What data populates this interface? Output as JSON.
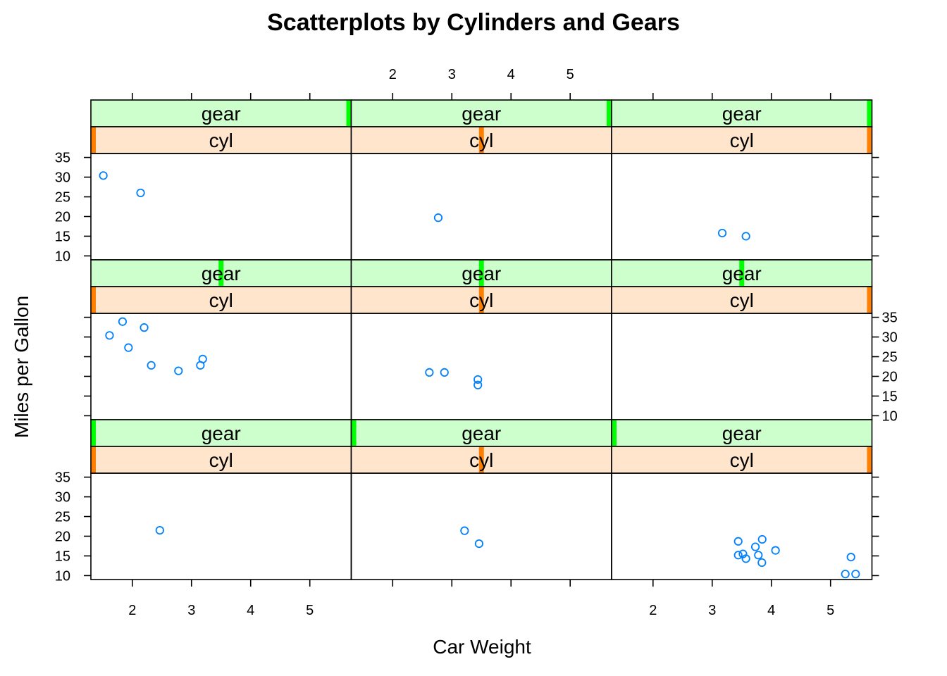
{
  "title": "Scatterplots by Cylinders and Gears",
  "xlabel": "Car Weight",
  "ylabel": "Miles per Gallon",
  "colors": {
    "point": "#0080FF",
    "gear_strip_bg": "#CCFFCC",
    "gear_strip_bar": "#00FF00",
    "cyl_strip_bg": "#FFE5CC",
    "cyl_strip_bar": "#FF7F00",
    "frame": "#000000"
  },
  "chart_data": {
    "type": "scatter",
    "layout": "3x3 lattice (trellis) panels",
    "x_ticks": [
      2,
      3,
      4,
      5
    ],
    "y_ticks": [
      10,
      15,
      20,
      25,
      30,
      35
    ],
    "xlim": [
      1.3,
      5.7
    ],
    "ylim": [
      9,
      36
    ],
    "grid": false,
    "panels": [
      {
        "row": 1,
        "col": 1,
        "strips": [
          {
            "label": "gear",
            "level_fraction": 1.0,
            "level_edge": "right"
          },
          {
            "label": "cyl",
            "level_fraction": 0.0,
            "level_edge": "left"
          }
        ],
        "points": [
          [
            1.51,
            30.4
          ],
          [
            2.14,
            26.0
          ]
        ]
      },
      {
        "row": 1,
        "col": 2,
        "strips": [
          {
            "label": "gear",
            "level_fraction": 1.0,
            "level_edge": "right"
          },
          {
            "label": "cyl",
            "level_fraction": 0.5,
            "level_edge": "middle"
          }
        ],
        "points": [
          [
            2.77,
            19.7
          ]
        ]
      },
      {
        "row": 1,
        "col": 3,
        "strips": [
          {
            "label": "gear",
            "level_fraction": 1.0,
            "level_edge": "right"
          },
          {
            "label": "cyl",
            "level_fraction": 1.0,
            "level_edge": "right"
          }
        ],
        "points": [
          [
            3.17,
            15.8
          ],
          [
            3.57,
            15.0
          ]
        ]
      },
      {
        "row": 2,
        "col": 1,
        "strips": [
          {
            "label": "gear",
            "level_fraction": 0.5,
            "level_edge": "middle"
          },
          {
            "label": "cyl",
            "level_fraction": 0.0,
            "level_edge": "left"
          }
        ],
        "points": [
          [
            1.615,
            30.4
          ],
          [
            1.835,
            33.9
          ],
          [
            1.935,
            27.3
          ],
          [
            2.2,
            32.4
          ],
          [
            2.32,
            22.8
          ],
          [
            2.78,
            21.4
          ],
          [
            3.15,
            22.8
          ],
          [
            3.19,
            24.4
          ]
        ]
      },
      {
        "row": 2,
        "col": 2,
        "strips": [
          {
            "label": "gear",
            "level_fraction": 0.5,
            "level_edge": "middle"
          },
          {
            "label": "cyl",
            "level_fraction": 0.5,
            "level_edge": "middle"
          }
        ],
        "points": [
          [
            2.62,
            21.0
          ],
          [
            2.875,
            21.0
          ],
          [
            3.44,
            19.2
          ],
          [
            3.44,
            17.8
          ]
        ]
      },
      {
        "row": 2,
        "col": 3,
        "strips": [
          {
            "label": "gear",
            "level_fraction": 0.5,
            "level_edge": "middle"
          },
          {
            "label": "cyl",
            "level_fraction": 1.0,
            "level_edge": "right"
          }
        ],
        "points": []
      },
      {
        "row": 3,
        "col": 1,
        "strips": [
          {
            "label": "gear",
            "level_fraction": 0.0,
            "level_edge": "left"
          },
          {
            "label": "cyl",
            "level_fraction": 0.0,
            "level_edge": "left"
          }
        ],
        "points": [
          [
            2.465,
            21.5
          ]
        ]
      },
      {
        "row": 3,
        "col": 2,
        "strips": [
          {
            "label": "gear",
            "level_fraction": 0.0,
            "level_edge": "left"
          },
          {
            "label": "cyl",
            "level_fraction": 0.5,
            "level_edge": "middle"
          }
        ],
        "points": [
          [
            3.215,
            21.4
          ],
          [
            3.46,
            18.1
          ]
        ]
      },
      {
        "row": 3,
        "col": 3,
        "strips": [
          {
            "label": "gear",
            "level_fraction": 0.0,
            "level_edge": "left"
          },
          {
            "label": "cyl",
            "level_fraction": 1.0,
            "level_edge": "right"
          }
        ],
        "points": [
          [
            3.44,
            18.7
          ],
          [
            3.44,
            15.2
          ],
          [
            3.52,
            15.5
          ],
          [
            3.57,
            14.3
          ],
          [
            3.73,
            17.3
          ],
          [
            3.78,
            15.2
          ],
          [
            3.84,
            13.3
          ],
          [
            3.845,
            19.2
          ],
          [
            4.07,
            16.4
          ],
          [
            5.25,
            10.4
          ],
          [
            5.345,
            14.7
          ],
          [
            5.424,
            10.4
          ]
        ]
      }
    ]
  }
}
